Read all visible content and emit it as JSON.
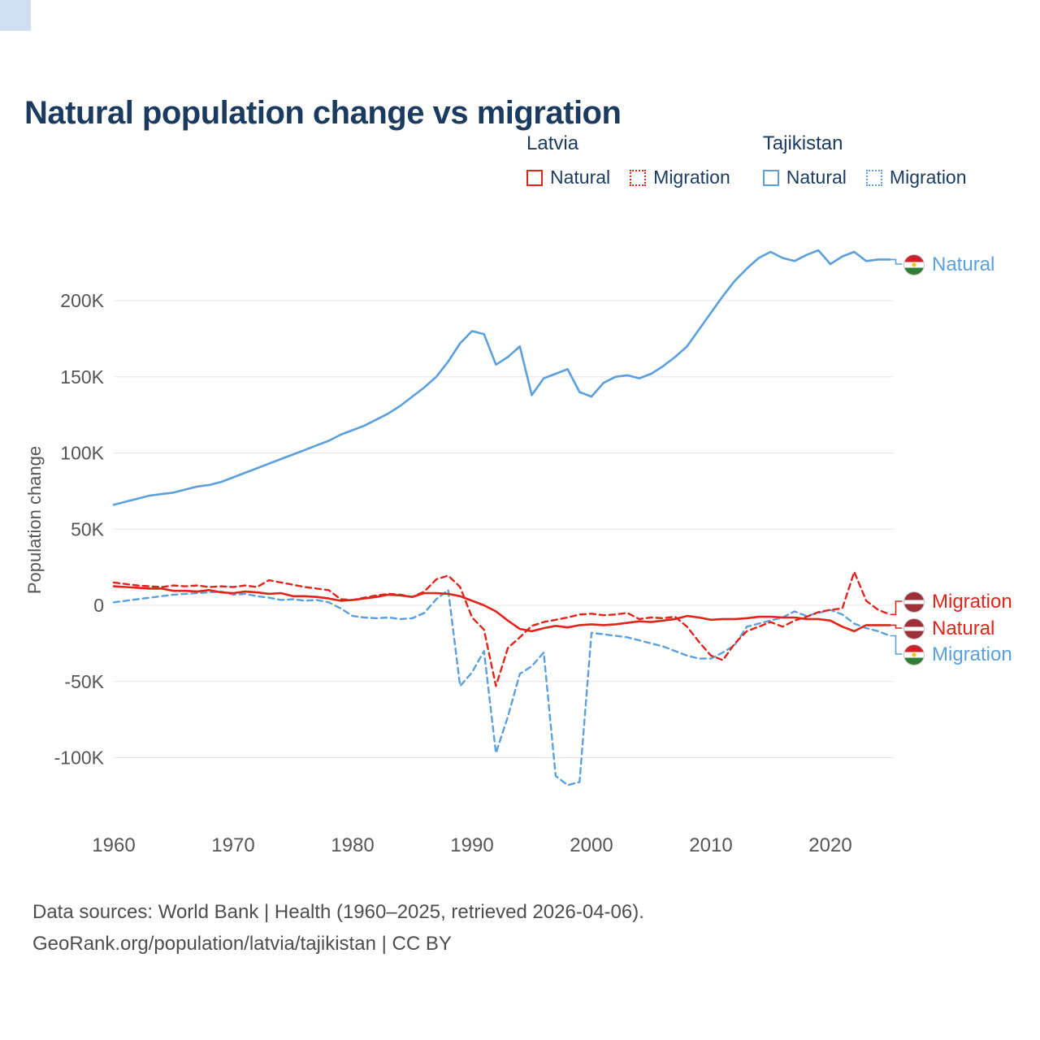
{
  "page": {
    "title": "Natural population change vs migration",
    "y_axis_label": "Population change",
    "footer_line1": "Data sources: World Bank | Health (1960–2025, retrieved 2026-04-06).",
    "footer_line2": "GeoRank.org/population/latvia/tajikistan | CC BY"
  },
  "colors": {
    "red": "#e2231a",
    "blue": "#5b9fdc",
    "navy": "#1b3a5f",
    "grid": "#e7e7e7",
    "axis_text": "#555555",
    "footer_text": "#4d4d4d",
    "accent_square": "#cfe0f3"
  },
  "legend": {
    "groups": [
      {
        "label": "Latvia",
        "items": [
          {
            "label": "Natural",
            "style": "solid",
            "color": "#e2231a"
          },
          {
            "label": "Migration",
            "style": "dotted",
            "color": "#e2231a"
          }
        ]
      },
      {
        "label": "Tajikistan",
        "items": [
          {
            "label": "Natural",
            "style": "solid",
            "color": "#5b9fdc"
          },
          {
            "label": "Migration",
            "style": "dotted",
            "color": "#5b9fdc"
          }
        ]
      }
    ]
  },
  "end_labels": [
    {
      "label": "Natural",
      "country": "Tajikistan",
      "color": "#5b9fdc",
      "approx_value_k": 227
    },
    {
      "label": "Migration",
      "country": "Latvia",
      "color": "#e2231a",
      "approx_value_k": -6
    },
    {
      "label": "Natural",
      "country": "Latvia",
      "color": "#e2231a",
      "approx_value_k": -13
    },
    {
      "label": "Migration",
      "country": "Tajikistan",
      "color": "#5b9fdc",
      "approx_value_k": -20
    }
  ],
  "chart_data": {
    "type": "line",
    "title": "Natural population change vs migration",
    "xlabel": "",
    "ylabel": "Population change",
    "unit": "thousands of people (K)",
    "grid": "horizontal",
    "x_ticks": [
      1960,
      1970,
      1980,
      1990,
      2000,
      2010,
      2020
    ],
    "y_ticks_k": [
      200,
      150,
      100,
      50,
      0,
      -50,
      -100
    ],
    "ylim_k": [
      -130,
      245
    ],
    "x": [
      1960,
      1961,
      1962,
      1963,
      1964,
      1965,
      1966,
      1967,
      1968,
      1969,
      1970,
      1971,
      1972,
      1973,
      1974,
      1975,
      1976,
      1977,
      1978,
      1979,
      1980,
      1981,
      1982,
      1983,
      1984,
      1985,
      1986,
      1987,
      1988,
      1989,
      1990,
      1991,
      1992,
      1993,
      1994,
      1995,
      1996,
      1997,
      1998,
      1999,
      2000,
      2001,
      2002,
      2003,
      2004,
      2005,
      2006,
      2007,
      2008,
      2009,
      2010,
      2011,
      2012,
      2013,
      2014,
      2015,
      2016,
      2017,
      2018,
      2019,
      2020,
      2021,
      2022,
      2023,
      2024,
      2025
    ],
    "series": [
      {
        "id": "tajikistan-natural",
        "name": "Tajikistan Natural",
        "color": "#5b9fdc",
        "dash": "solid",
        "values_k": [
          66,
          68,
          70,
          72,
          73,
          74,
          76,
          78,
          79,
          81,
          84,
          87,
          90,
          93,
          96,
          99,
          102,
          105,
          108,
          112,
          115,
          118,
          122,
          126,
          131,
          137,
          143,
          150,
          160,
          172,
          180,
          178,
          158,
          163,
          170,
          138,
          149,
          152,
          155,
          140,
          137,
          146,
          150,
          151,
          149,
          152,
          157,
          163,
          170,
          181,
          192,
          203,
          213,
          221,
          228,
          232,
          228,
          226,
          230,
          233,
          224,
          229,
          232,
          226,
          227,
          227
        ]
      },
      {
        "id": "tajikistan-migration",
        "name": "Tajikistan Migration",
        "color": "#5b9fdc",
        "dash": "dashed",
        "values_k": [
          2,
          3,
          4,
          5,
          6,
          7,
          7.5,
          8,
          8.5,
          9,
          7,
          7.5,
          6,
          5,
          3.5,
          4,
          3,
          3.5,
          2,
          -2,
          -7,
          -8,
          -8.5,
          -8,
          -9,
          -8.5,
          -5,
          4,
          10,
          -53,
          -44,
          -30,
          -97,
          -73,
          -45,
          -40,
          -31,
          -112,
          -118,
          -116,
          -18,
          -19,
          -20,
          -21,
          -23,
          -25,
          -27,
          -30,
          -33,
          -35,
          -35,
          -31,
          -26,
          -14,
          -12,
          -10,
          -8,
          -4,
          -7,
          -5,
          -3,
          -6,
          -12,
          -15,
          -17,
          -20
        ]
      },
      {
        "id": "latvia-migration",
        "name": "Latvia Migration",
        "color": "#e2231a",
        "dash": "dashed",
        "values_k": [
          15,
          14,
          13,
          12.5,
          12,
          13,
          12.5,
          13,
          12,
          12.5,
          12,
          13,
          12,
          16.5,
          15,
          13.5,
          12,
          11,
          10,
          4,
          3.5,
          5,
          6.5,
          7.5,
          7,
          5.5,
          9,
          17,
          19.5,
          12,
          -8,
          -16,
          -53,
          -28,
          -21,
          -13.5,
          -11,
          -9.5,
          -8,
          -6,
          -5.5,
          -6.5,
          -6,
          -5,
          -9,
          -8,
          -8.5,
          -7.5,
          -14,
          -24,
          -33,
          -36,
          -25,
          -17,
          -14,
          -11,
          -14,
          -10,
          -7.5,
          -4.5,
          -3,
          -2,
          22,
          3,
          -3,
          -6
        ]
      },
      {
        "id": "latvia-natural",
        "name": "Latvia Natural",
        "color": "#e2231a",
        "dash": "solid",
        "values_k": [
          12.5,
          12,
          11.5,
          11,
          11,
          9.5,
          9.5,
          9,
          10,
          8.5,
          8,
          9,
          8.5,
          7.5,
          8,
          6,
          6,
          5.5,
          4.5,
          3,
          3.5,
          4.5,
          5.5,
          7,
          6.5,
          5.5,
          8,
          8,
          7.5,
          6,
          3,
          0,
          -4,
          -10,
          -15.5,
          -17,
          -15,
          -13.5,
          -14.5,
          -13,
          -12.5,
          -13,
          -12.5,
          -11.5,
          -10.5,
          -11,
          -10,
          -9,
          -7,
          -8,
          -9.5,
          -9,
          -9,
          -8.5,
          -7.5,
          -7.5,
          -8,
          -8,
          -9,
          -9,
          -10,
          -14,
          -17,
          -13,
          -13,
          -13
        ]
      }
    ]
  }
}
